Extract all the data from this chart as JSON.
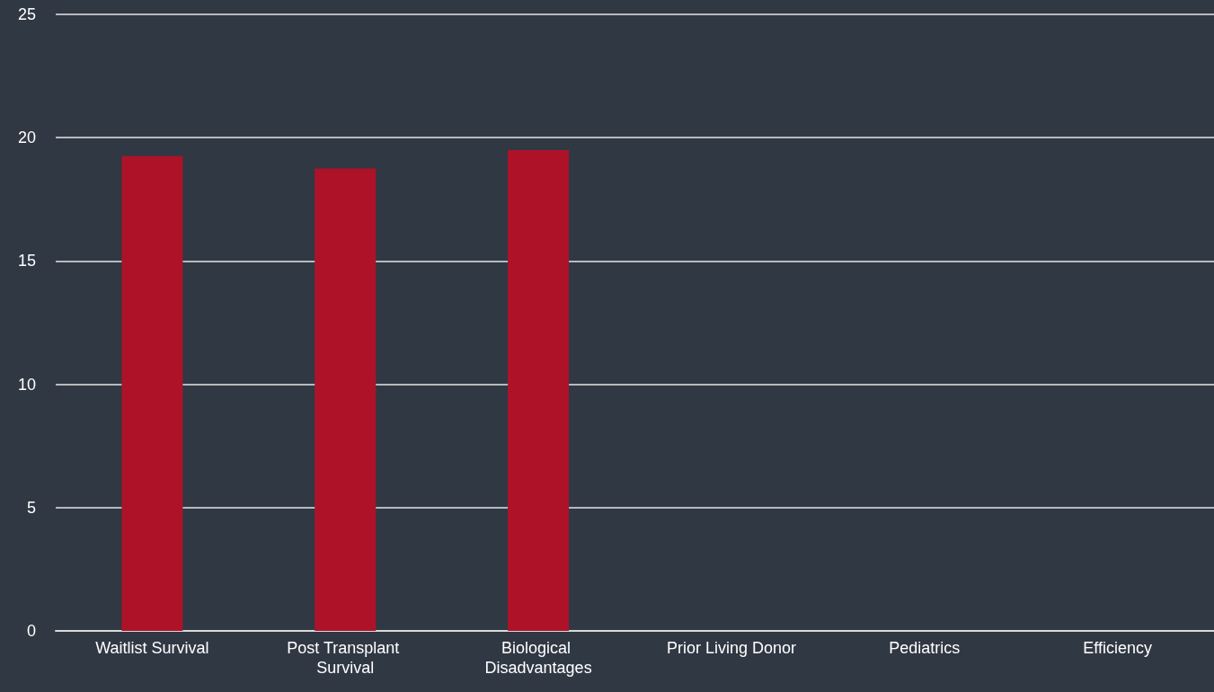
{
  "chart_data": {
    "type": "bar",
    "categories": [
      "Waitlist Survival",
      "Post Transplant Survival",
      "Biological Disadvantages",
      "Prior Living Donor",
      "Pediatrics",
      "Efficiency"
    ],
    "values": [
      19.25,
      18.75,
      19.5,
      null,
      null,
      null
    ],
    "color": "#ae1229",
    "ylim": [
      0,
      25
    ],
    "yticks": [
      0,
      5,
      10,
      15,
      20,
      25
    ],
    "grid": "y"
  }
}
